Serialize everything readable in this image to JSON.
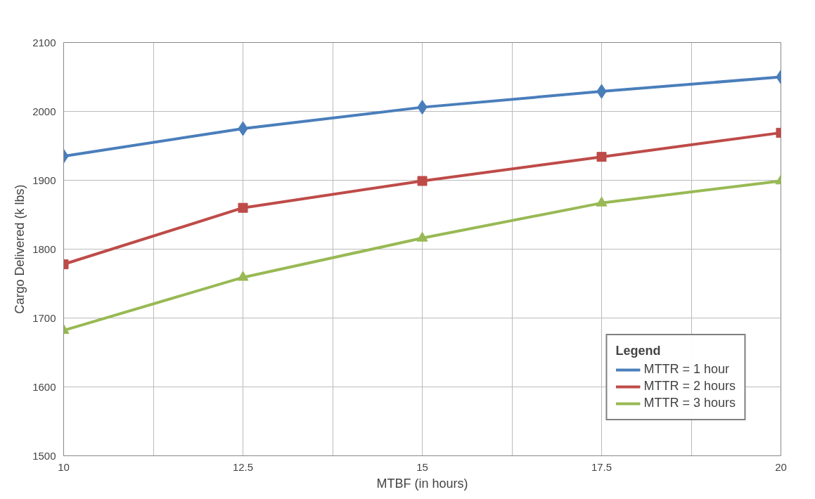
{
  "chart_data": {
    "type": "line",
    "xlabel": "MTBF (in hours)",
    "ylabel": "Cargo Delivered (k lbs)",
    "legend_title": "Legend",
    "x": [
      10,
      12.5,
      15,
      17.5,
      20
    ],
    "series": [
      {
        "name": "MTTR = 1 hour",
        "color": "#4a7ebb",
        "marker": "diamond",
        "values": [
          1935,
          1975,
          2006,
          2029,
          2050
        ]
      },
      {
        "name": "MTTR = 2 hours",
        "color": "#be4b48",
        "marker": "square",
        "values": [
          1778,
          1860,
          1899,
          1934,
          1969
        ]
      },
      {
        "name": "MTTR = 3 hours",
        "color": "#98b954",
        "marker": "triangle",
        "values": [
          1682,
          1759,
          1816,
          1867,
          1899
        ]
      }
    ],
    "xlim": [
      10,
      20
    ],
    "ylim": [
      1500,
      2100
    ],
    "xticks": [
      10,
      {
        "value": 11.25,
        "label": null
      },
      12.5,
      {
        "value": 13.75,
        "label": null
      },
      15,
      {
        "value": 16.25,
        "label": null
      },
      17.5,
      {
        "value": 18.75,
        "label": null
      },
      20
    ],
    "yticks": [
      1500,
      1600,
      1700,
      1800,
      1900,
      2000,
      2100
    ],
    "grid": true,
    "legend": "bottom right",
    "line_style": "solid"
  }
}
